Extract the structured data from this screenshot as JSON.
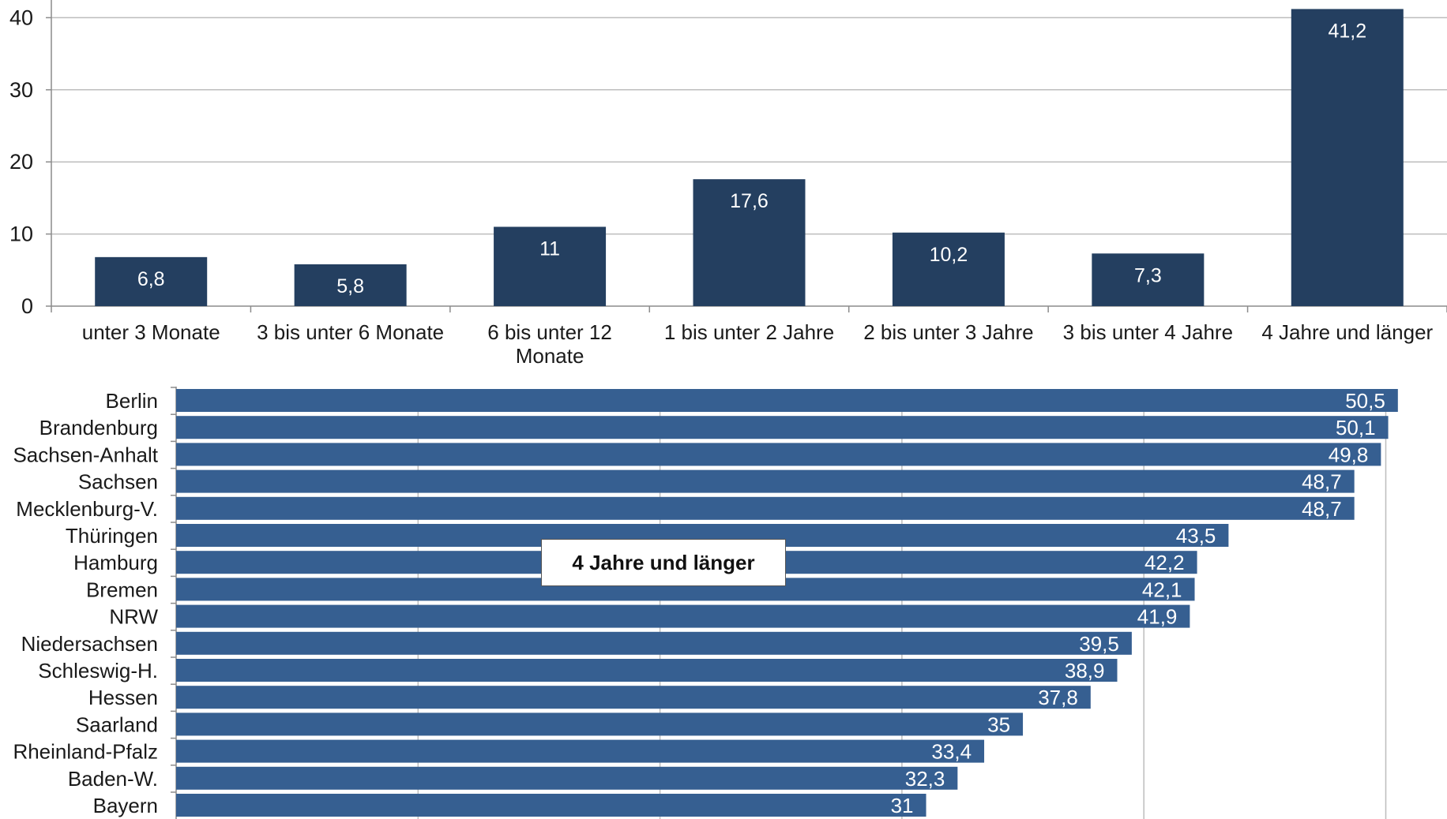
{
  "chart_data": [
    {
      "type": "bar",
      "categories": [
        "unter 3 Monate",
        "3 bis unter 6 Monate",
        "6 bis unter 12 Monate",
        "1 bis unter 2 Jahre",
        "2 bis unter 3 Jahre",
        "3 bis unter 4 Jahre",
        "4 Jahre und länger"
      ],
      "category_lines": [
        [
          "unter 3 Monate"
        ],
        [
          "3 bis unter 6 Monate"
        ],
        [
          "6 bis unter 12",
          "Monate"
        ],
        [
          "1 bis unter 2 Jahre"
        ],
        [
          "2 bis unter 3 Jahre"
        ],
        [
          "3 bis unter 4 Jahre"
        ],
        [
          "4 Jahre und länger"
        ]
      ],
      "values": [
        6.8,
        5.8,
        11,
        17.6,
        10.2,
        7.3,
        41.2
      ],
      "value_labels": [
        "6,8",
        "5,8",
        "11",
        "17,6",
        "10,2",
        "7,3",
        "41,2"
      ],
      "yticks": [
        0,
        10,
        20,
        30,
        40
      ],
      "ylim": [
        0,
        42
      ],
      "grid": true,
      "bar_color": "#243f60"
    },
    {
      "type": "bar",
      "orientation": "horizontal",
      "categories": [
        "Berlin",
        "Brandenburg",
        "Sachsen-Anhalt",
        "Sachsen",
        "Mecklenburg-V.",
        "Thüringen",
        "Hamburg",
        "Bremen",
        "NRW",
        "Niedersachsen",
        "Schleswig-H.",
        "Hessen",
        "Saarland",
        "Rheinland-Pfalz",
        "Baden-W.",
        "Bayern"
      ],
      "values": [
        50.5,
        50.1,
        49.8,
        48.7,
        48.7,
        43.5,
        42.2,
        42.1,
        41.9,
        39.5,
        38.9,
        37.8,
        35,
        33.4,
        32.3,
        31
      ],
      "value_labels": [
        "50,5",
        "50,1",
        "49,8",
        "48,7",
        "48,7",
        "43,5",
        "42,2",
        "42,1",
        "41,9",
        "39,5",
        "38,9",
        "37,8",
        "35",
        "33,4",
        "32,3",
        "31"
      ],
      "xlim": [
        0,
        50
      ],
      "grid": true,
      "bar_color": "#365f91",
      "annotation": "4 Jahre und länger"
    }
  ]
}
